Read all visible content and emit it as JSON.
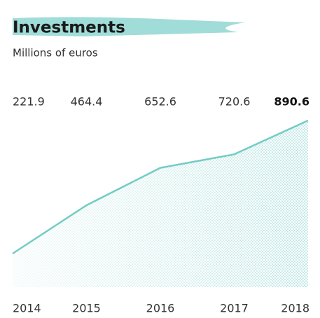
{
  "chart_data": {
    "type": "area",
    "title": "Investments",
    "subtitle": "Millions of euros",
    "categories": [
      "2014",
      "2015",
      "2016",
      "2017",
      "2018"
    ],
    "values": [
      221.9,
      464.4,
      652.6,
      720.6,
      890.6
    ],
    "color": "#72ccc6"
  }
}
